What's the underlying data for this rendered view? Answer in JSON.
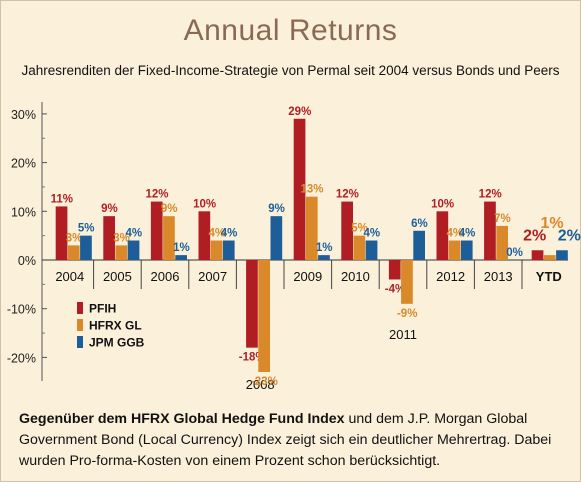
{
  "title": "Annual Returns",
  "subtitle": "Jahresrenditen der Fixed-Income-Strategie von Permal seit 2004 versus Bonds und Peers",
  "footnote": {
    "bold": "Gegenüber dem HFRX Global Hedge Fund Index",
    "rest": " und dem J.P. Morgan Global Government Bond (Local Currency) Index zeigt sich ein deutlicher Mehrertrag. Dabei wurden Pro-forma-Kosten von einem Prozent schon berücksichtigt."
  },
  "chart_data": {
    "type": "bar",
    "categories": [
      "2004",
      "2005",
      "2006",
      "2007",
      "2008",
      "2009",
      "2010",
      "2011",
      "2012",
      "2013",
      "YTD"
    ],
    "series": [
      {
        "name": "PFIH",
        "color": "#b01e23",
        "values": [
          11,
          9,
          12,
          10,
          -18,
          29,
          12,
          -4,
          10,
          12,
          2
        ],
        "labels": [
          "11%",
          "9%",
          "12%",
          "10%",
          "-18%",
          "29%",
          "12%",
          "-4%",
          "10%",
          "12%",
          "2%"
        ]
      },
      {
        "name": "HFRX GL",
        "color": "#d9892a",
        "values": [
          3,
          3,
          9,
          4,
          -23,
          13,
          5,
          -9,
          4,
          7,
          1
        ],
        "labels": [
          "3%",
          "3%",
          "9%",
          "4%",
          "-23%",
          "13%",
          "5%",
          "-9%",
          "4%",
          "7%",
          "1%"
        ]
      },
      {
        "name": "JPM GGB",
        "color": "#1d5e99",
        "values": [
          5,
          4,
          1,
          4,
          9,
          1,
          4,
          6,
          4,
          0,
          2
        ],
        "labels": [
          "5%",
          "4%",
          "1%",
          "4%",
          "9%",
          "1%",
          "4%",
          "6%",
          "4%",
          "0%",
          "2%"
        ]
      }
    ],
    "yticks": [
      "30%",
      "20%",
      "10%",
      "0%",
      "-10%",
      "-20%"
    ],
    "ylim": [
      -25,
      31
    ],
    "legend_position": "lower-left",
    "grid": false
  }
}
